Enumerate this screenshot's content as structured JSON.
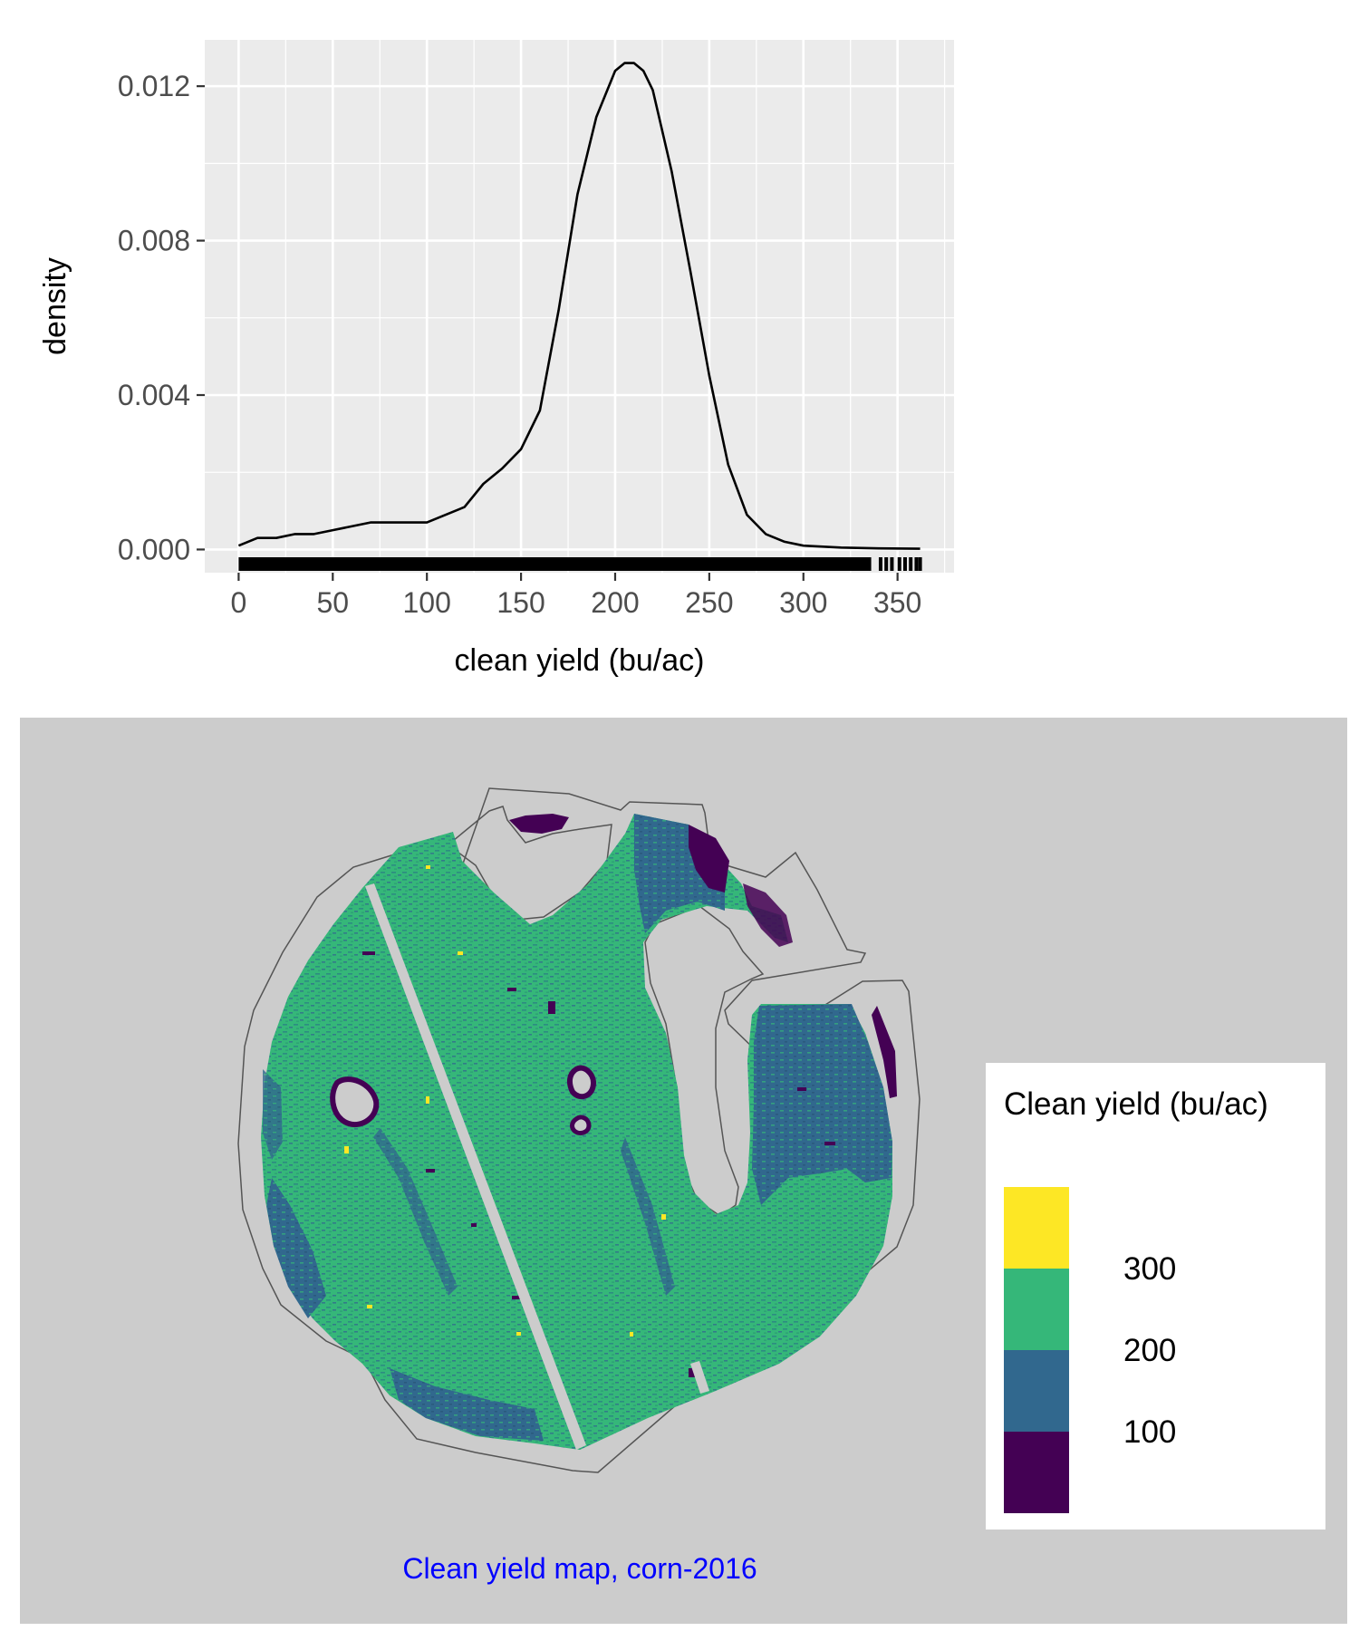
{
  "chart_data": [
    {
      "type": "line",
      "subtype": "density",
      "xlabel": "clean yield (bu/ac)",
      "ylabel": "density",
      "xlim": [
        -18,
        380
      ],
      "ylim": [
        -0.0006,
        0.0132
      ],
      "xticks": [
        0,
        50,
        100,
        150,
        200,
        250,
        300,
        350
      ],
      "yticks": [
        0.0,
        0.004,
        0.008,
        0.012
      ],
      "ytick_labels": [
        "0.000",
        "0.004",
        "0.008",
        "0.012"
      ],
      "grid": true,
      "rug": true,
      "series": [
        {
          "x": [
            0,
            10,
            20,
            30,
            40,
            50,
            60,
            70,
            80,
            90,
            100,
            110,
            120,
            130,
            140,
            150,
            160,
            170,
            180,
            190,
            200,
            205,
            210,
            215,
            220,
            230,
            240,
            250,
            260,
            270,
            280,
            290,
            300,
            320,
            340,
            362
          ],
          "y": [
            0.0001,
            0.0003,
            0.0003,
            0.0004,
            0.0004,
            0.0005,
            0.0006,
            0.0007,
            0.0007,
            0.0007,
            0.0007,
            0.0009,
            0.0011,
            0.0017,
            0.0021,
            0.0026,
            0.0036,
            0.0062,
            0.0092,
            0.0112,
            0.0124,
            0.0126,
            0.0126,
            0.0124,
            0.0119,
            0.0098,
            0.0072,
            0.0045,
            0.0022,
            0.0009,
            0.0004,
            0.0002,
            0.0001,
            5e-05,
            3e-05,
            2e-05
          ]
        }
      ]
    },
    {
      "type": "heatmap",
      "subtype": "map",
      "caption": "Clean yield map, corn-2016",
      "legend": {
        "title": "Clean yield (bu/ac)",
        "breaks": [
          100,
          200,
          300
        ],
        "bins": [
          {
            "color": "#fde725"
          },
          {
            "color": "#35b779"
          },
          {
            "color": "#31688e"
          },
          {
            "color": "#440154"
          }
        ],
        "placement": "right"
      },
      "colors": {
        "background": "#cccccc",
        "field_edge": "#555555",
        "caption": "#0000ff"
      }
    }
  ]
}
